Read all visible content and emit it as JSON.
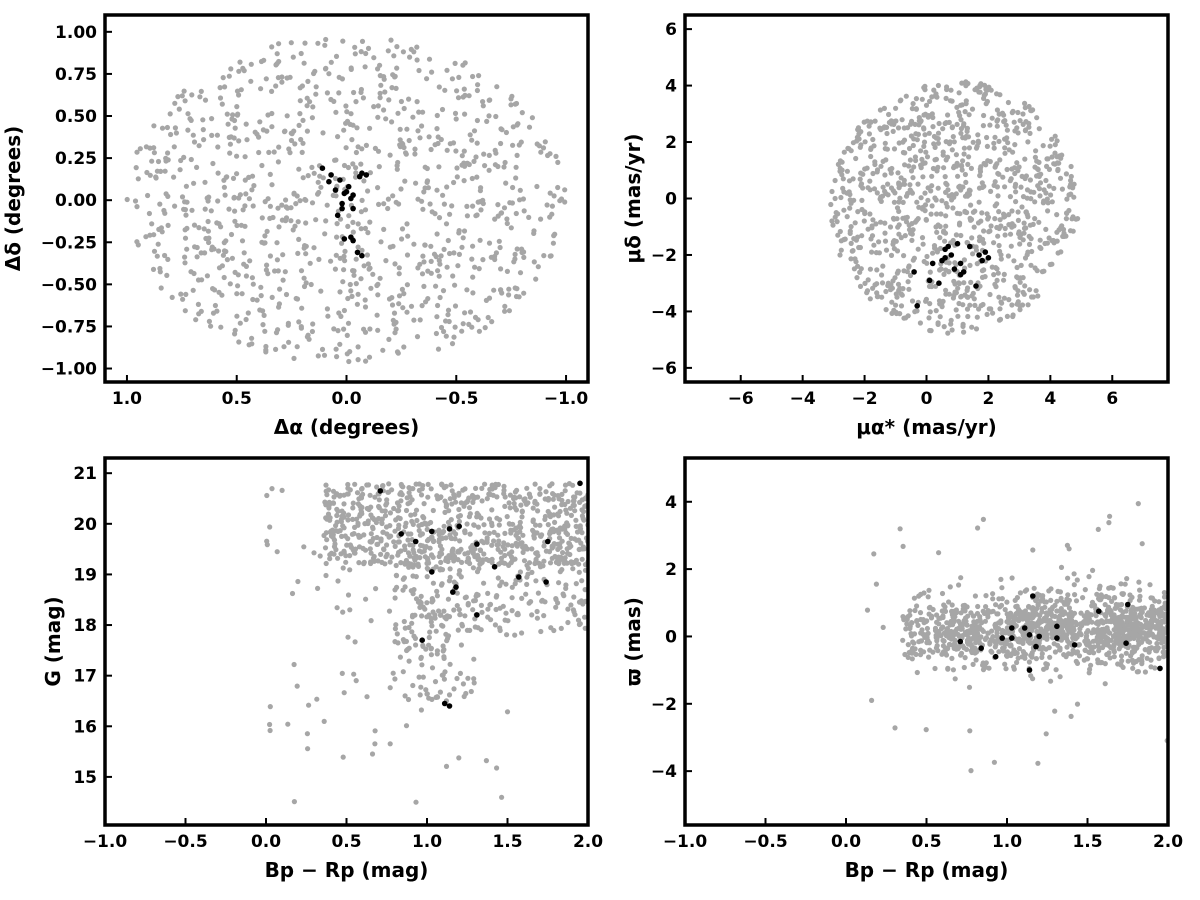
{
  "colors": {
    "field": "#a6a6a6",
    "member": "#000000",
    "frame": "#000000"
  },
  "chart_data": [
    {
      "type": "scatter",
      "xlabel": "Δα (degrees)",
      "ylabel": "Δδ (degrees)",
      "xlim": [
        1.1,
        -1.1
      ],
      "ylim": [
        -1.08,
        1.1
      ],
      "x_inverted": true,
      "xticks": [
        1.0,
        0.5,
        0.0,
        -0.5,
        -1.0
      ],
      "xtick_labels": [
        "1.0",
        "0.5",
        "0.0",
        "−0.5",
        "−1.0"
      ],
      "yticks": [
        -1.0,
        -0.75,
        -0.5,
        -0.25,
        0.0,
        0.25,
        0.5,
        0.75,
        1.0
      ],
      "ytick_labels": [
        "−1.00",
        "−0.75",
        "−0.50",
        "−0.25",
        "0.00",
        "0.25",
        "0.50",
        "0.75",
        "1.00"
      ],
      "grid": false,
      "field_distribution": {
        "shape": "disk",
        "center": [
          0.0,
          0.0
        ],
        "rx": 1.0,
        "ry": 0.98,
        "n": 1000
      },
      "members": {
        "x": [
          0.11,
          0.08,
          0.07,
          0.05,
          0.04,
          0.03,
          0.01,
          -0.01,
          0.02,
          -0.03,
          0.02,
          -0.03,
          -0.07,
          -0.06,
          -0.02,
          -0.03,
          -0.09,
          0.01,
          0.0,
          -0.02,
          -0.05,
          -0.07
        ],
        "y": [
          0.19,
          0.11,
          0.15,
          0.06,
          -0.09,
          0.12,
          0.04,
          0.08,
          -0.02,
          0.03,
          -0.05,
          -0.05,
          0.16,
          0.14,
          -0.22,
          -0.24,
          0.15,
          -0.23,
          0.05,
          0.01,
          -0.31,
          -0.33
        ]
      }
    },
    {
      "type": "scatter",
      "xlabel": "μα* (mas/yr)",
      "ylabel": "μδ (mas/yr)",
      "xlim": [
        -7.8,
        7.8
      ],
      "ylim": [
        -6.5,
        6.5
      ],
      "xticks": [
        -6,
        -4,
        -2,
        0,
        2,
        4,
        6
      ],
      "xtick_labels": [
        "−6",
        "−4",
        "−2",
        "0",
        "2",
        "4",
        "6"
      ],
      "yticks": [
        -6,
        -4,
        -2,
        0,
        2,
        4,
        6
      ],
      "ytick_labels": [
        "−6",
        "−4",
        "−2",
        "0",
        "2",
        "4",
        "6"
      ],
      "grid": false,
      "field_distribution": {
        "shape": "disk",
        "center": [
          0.9,
          -0.3
        ],
        "rx": 4.0,
        "ry": 4.5,
        "clip_y": [
          -4.9,
          4.5
        ],
        "n": 1000
      },
      "members": {
        "x": [
          -0.4,
          -0.3,
          0.1,
          0.2,
          0.4,
          0.5,
          0.6,
          0.6,
          0.7,
          0.8,
          1.0,
          1.1,
          1.1,
          1.2,
          1.4,
          1.6,
          1.7,
          1.8,
          2.0,
          1.9,
          0.9
        ],
        "y": [
          -2.6,
          -3.8,
          -2.9,
          -2.3,
          -3.0,
          -2.2,
          -1.8,
          -2.1,
          -1.7,
          -2.0,
          -1.6,
          -2.3,
          -2.7,
          -2.6,
          -1.7,
          -3.1,
          -2.0,
          -2.2,
          -2.1,
          -1.9,
          -2.5
        ]
      }
    },
    {
      "type": "scatter",
      "xlabel": "Bp − Rp (mag)",
      "ylabel": "G (mag)",
      "xlim": [
        -1.0,
        2.0
      ],
      "ylim": [
        14.05,
        21.3
      ],
      "xticks": [
        -1.0,
        -0.5,
        0.0,
        0.5,
        1.0,
        1.5,
        2.0
      ],
      "xtick_labels": [
        "−1.0",
        "−0.5",
        "0.0",
        "0.5",
        "1.0",
        "1.5",
        "2.0"
      ],
      "yticks": [
        15,
        16,
        17,
        18,
        19,
        20,
        21
      ],
      "ytick_labels": [
        "15",
        "16",
        "17",
        "18",
        "19",
        "20",
        "21"
      ],
      "grid": false,
      "field_distribution": {
        "shape": "color-magnitude",
        "n": 1100
      },
      "members": {
        "x": [
          0.71,
          0.84,
          0.93,
          1.03,
          1.14,
          1.2,
          1.03,
          1.16,
          1.18,
          1.31,
          1.42,
          1.57,
          1.75,
          1.74,
          1.95,
          1.31,
          1.11,
          1.14,
          0.97
        ],
        "y": [
          20.65,
          19.8,
          19.65,
          19.85,
          19.9,
          19.95,
          19.05,
          18.65,
          18.75,
          19.6,
          19.15,
          18.95,
          19.65,
          18.85,
          20.8,
          18.2,
          16.45,
          16.4,
          17.7
        ]
      }
    },
    {
      "type": "scatter",
      "xlabel": "Bp − Rp (mag)",
      "ylabel": "ϖ (mas)",
      "xlim": [
        -1.0,
        2.0
      ],
      "ylim": [
        -5.6,
        5.3
      ],
      "xticks": [
        -1.0,
        -0.5,
        0.0,
        0.5,
        1.0,
        1.5,
        2.0
      ],
      "xtick_labels": [
        "−1.0",
        "−0.5",
        "0.0",
        "0.5",
        "1.0",
        "1.5",
        "2.0"
      ],
      "yticks": [
        -4,
        -2,
        0,
        2,
        4
      ],
      "ytick_labels": [
        "−4",
        "−2",
        "0",
        "2",
        "4"
      ],
      "grid": false,
      "field_distribution": {
        "shape": "horizontal-band",
        "center_y": 0.2,
        "n": 1200
      },
      "members": {
        "x": [
          0.71,
          0.84,
          0.93,
          0.97,
          1.03,
          1.11,
          1.14,
          1.16,
          1.18,
          1.2,
          1.31,
          1.31,
          1.42,
          1.57,
          1.75,
          1.74,
          1.95,
          1.14,
          1.03
        ],
        "y": [
          -0.15,
          -0.35,
          -0.6,
          -0.05,
          0.25,
          0.25,
          -1.0,
          1.2,
          -0.3,
          0.0,
          0.3,
          -0.05,
          -0.25,
          0.75,
          0.95,
          -0.2,
          -0.95,
          0.05,
          -0.05
        ]
      }
    }
  ]
}
